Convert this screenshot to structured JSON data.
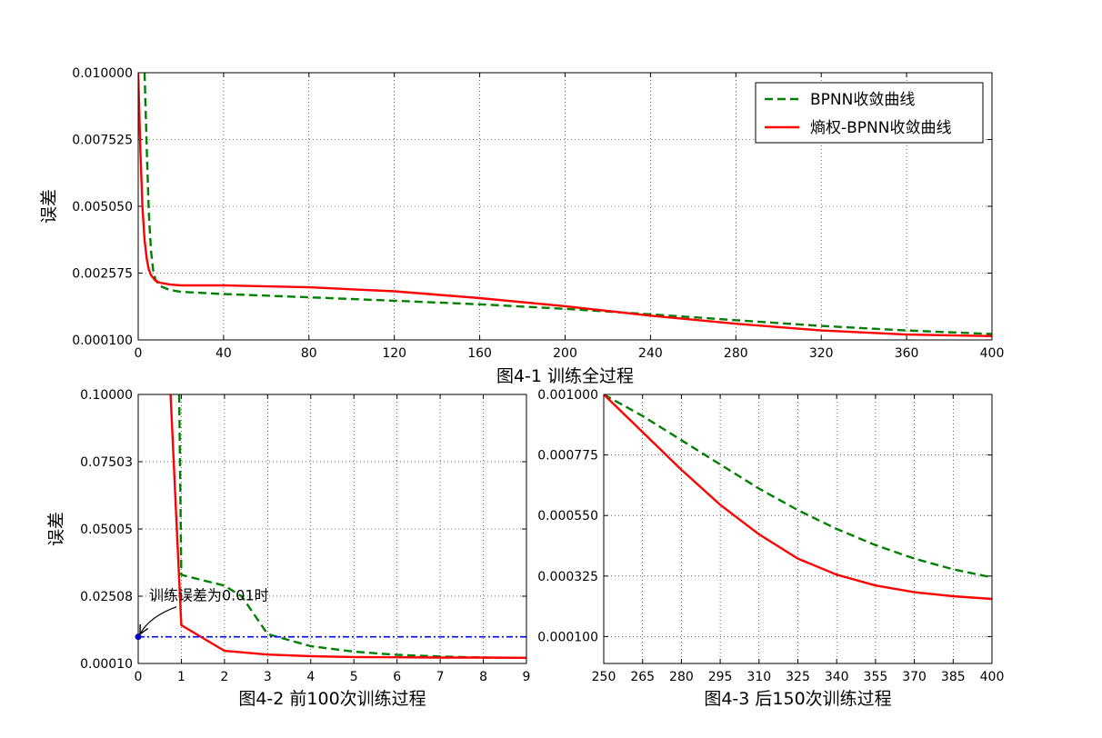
{
  "chart_data": [
    {
      "type": "line",
      "caption": "图4-1 训练全过程",
      "ylabel": "误差",
      "xlim": [
        0,
        400
      ],
      "ylim": [
        0.0001,
        0.01
      ],
      "xticks": [
        "0",
        "40",
        "80",
        "120",
        "160",
        "200",
        "240",
        "280",
        "320",
        "360",
        "400"
      ],
      "yticks": [
        "0.000100",
        "0.002575",
        "0.005050",
        "0.007525",
        "0.010000"
      ],
      "grid": true,
      "legend_position": "top-right",
      "series": [
        {
          "name": "BPNN收敛曲线",
          "color": "#008000",
          "style": "dashed",
          "x": [
            3,
            4,
            5,
            6,
            7,
            8,
            10,
            15,
            20,
            40,
            80,
            120,
            160,
            200,
            240,
            280,
            320,
            360,
            400
          ],
          "y": [
            0.01,
            0.0072,
            0.0048,
            0.0034,
            0.0027,
            0.00235,
            0.0021,
            0.00195,
            0.00188,
            0.0018,
            0.00168,
            0.00155,
            0.00142,
            0.00125,
            0.00105,
            0.00083,
            0.00062,
            0.00045,
            0.00032
          ]
        },
        {
          "name": "熵权-BPNN收敛曲线",
          "color": "#ff0000",
          "style": "solid",
          "x": [
            0,
            1,
            2,
            3,
            4,
            5,
            6,
            8,
            10,
            15,
            20,
            40,
            80,
            120,
            160,
            200,
            240,
            280,
            320,
            360,
            400
          ],
          "y": [
            0.01,
            0.0072,
            0.005,
            0.0038,
            0.0031,
            0.0027,
            0.0025,
            0.0023,
            0.00222,
            0.00215,
            0.00212,
            0.00212,
            0.00205,
            0.0019,
            0.00165,
            0.00135,
            0.001,
            0.0007,
            0.00045,
            0.0003,
            0.00024
          ]
        }
      ]
    },
    {
      "type": "line",
      "caption": "图4-2 前100次训练过程",
      "ylabel": "误差",
      "xlim": [
        0,
        9
      ],
      "ylim": [
        0.0001,
        0.1
      ],
      "xticks": [
        "0",
        "1",
        "2",
        "3",
        "4",
        "5",
        "6",
        "7",
        "8",
        "9"
      ],
      "yticks": [
        "0.00010",
        "0.02508",
        "0.05005",
        "0.07503",
        "0.10000"
      ],
      "grid": true,
      "annotation": {
        "text": "训练误差为0.01时",
        "x": 0,
        "y": 0.01
      },
      "series": [
        {
          "name": "BPNN收敛曲线",
          "color": "#008000",
          "style": "dashed",
          "x": [
            0.95,
            1,
            2,
            2.4,
            3,
            4,
            5,
            6,
            7,
            8,
            9
          ],
          "y": [
            0.1,
            0.033,
            0.029,
            0.025,
            0.011,
            0.0065,
            0.0045,
            0.0033,
            0.0027,
            0.0023,
            0.0022
          ]
        },
        {
          "name": "熵权-BPNN收敛曲线",
          "color": "#ff0000",
          "style": "solid",
          "x": [
            0.75,
            1,
            2,
            3,
            4,
            5,
            6,
            7,
            8,
            9
          ],
          "y": [
            0.1,
            0.0143,
            0.0048,
            0.0034,
            0.0028,
            0.0025,
            0.0024,
            0.0023,
            0.0023,
            0.0022
          ]
        },
        {
          "name": "",
          "color": "#0000ff",
          "style": "dashdot",
          "x": [
            0,
            9
          ],
          "y": [
            0.01,
            0.01
          ]
        }
      ]
    },
    {
      "type": "line",
      "caption": "图4-3 后150次训练过程",
      "xlim": [
        250,
        400
      ],
      "ylim": [
        0.0,
        0.001
      ],
      "xticks": [
        "250",
        "265",
        "280",
        "295",
        "310",
        "325",
        "340",
        "355",
        "370",
        "385",
        "400"
      ],
      "yticks": [
        "0.000100",
        "0.000325",
        "0.000550",
        "0.000775",
        "0.001000"
      ],
      "grid": true,
      "series": [
        {
          "name": "BPNN收敛曲线",
          "color": "#008000",
          "style": "dashed",
          "x": [
            250,
            265,
            280,
            295,
            310,
            325,
            340,
            355,
            370,
            385,
            400
          ],
          "y": [
            0.001,
            0.00092,
            0.00083,
            0.00074,
            0.00065,
            0.00057,
            0.0005,
            0.00044,
            0.00039,
            0.00035,
            0.00032
          ]
        },
        {
          "name": "熵权-BPNN收敛曲线",
          "color": "#ff0000",
          "style": "solid",
          "x": [
            250,
            265,
            280,
            295,
            310,
            325,
            340,
            355,
            370,
            385,
            400
          ],
          "y": [
            0.001,
            0.00086,
            0.00072,
            0.00059,
            0.00048,
            0.00039,
            0.00033,
            0.00029,
            0.000265,
            0.00025,
            0.00024
          ]
        }
      ]
    }
  ]
}
